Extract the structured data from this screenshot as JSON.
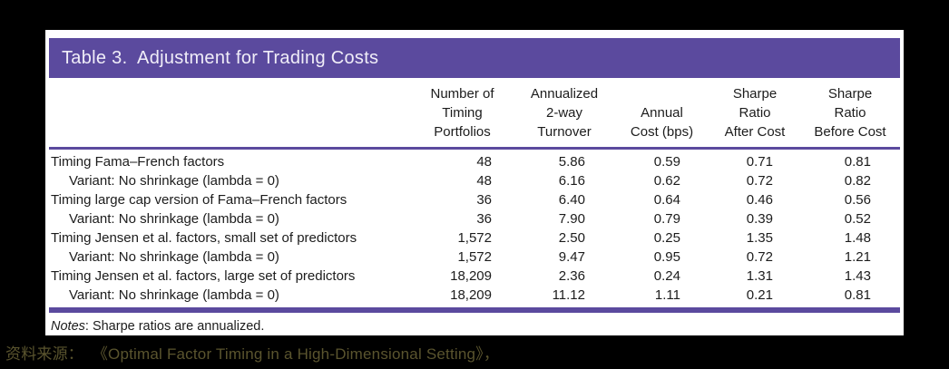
{
  "colors": {
    "accent": "#5b4a9e",
    "title_text": "#f0edf8",
    "body_text": "#1c1c1c",
    "source_text": "#5a542e",
    "page_bg": "#000000",
    "card_bg": "#ffffff"
  },
  "table": {
    "title": "Table 3.  Adjustment for Trading Costs",
    "columns": [
      {
        "lines": [
          "Number of",
          "Timing",
          "Portfolios"
        ]
      },
      {
        "lines": [
          "Annualized",
          "2-way",
          "Turnover"
        ]
      },
      {
        "lines": [
          "Annual",
          "Cost (bps)"
        ]
      },
      {
        "lines": [
          "Sharpe",
          "Ratio",
          "After Cost"
        ]
      },
      {
        "lines": [
          "Sharpe",
          "Ratio",
          "Before Cost"
        ]
      }
    ],
    "rows": [
      {
        "label": "Timing Fama–French factors",
        "indent": false,
        "values": [
          "48",
          "5.86",
          "0.59",
          "0.71",
          "0.81"
        ]
      },
      {
        "label": "Variant: No shrinkage (lambda = 0)",
        "indent": true,
        "values": [
          "48",
          "6.16",
          "0.62",
          "0.72",
          "0.82"
        ]
      },
      {
        "label": "Timing large cap version of Fama–French factors",
        "indent": false,
        "values": [
          "36",
          "6.40",
          "0.64",
          "0.46",
          "0.56"
        ]
      },
      {
        "label": "Variant: No shrinkage (lambda = 0)",
        "indent": true,
        "values": [
          "36",
          "7.90",
          "0.79",
          "0.39",
          "0.52"
        ]
      },
      {
        "label": "Timing Jensen et al. factors, small set of predictors",
        "indent": false,
        "values": [
          "1,572",
          "2.50",
          "0.25",
          "1.35",
          "1.48"
        ]
      },
      {
        "label": "Variant: No shrinkage (lambda = 0)",
        "indent": true,
        "values": [
          "1,572",
          "9.47",
          "0.95",
          "0.72",
          "1.21"
        ]
      },
      {
        "label": "Timing Jensen et al. factors, large set of predictors",
        "indent": false,
        "values": [
          "18,209",
          "2.36",
          "0.24",
          "1.31",
          "1.43"
        ]
      },
      {
        "label": "Variant: No shrinkage (lambda = 0)",
        "indent": true,
        "values": [
          "18,209",
          "11.12",
          "1.11",
          "0.21",
          "0.81"
        ]
      }
    ],
    "notes_prefix": "Notes",
    "notes_text": ": Sharpe ratios are annualized."
  },
  "source": {
    "text": "资料来源：  《Optimal Factor Timing in a High-Dimensional Setting》，"
  }
}
